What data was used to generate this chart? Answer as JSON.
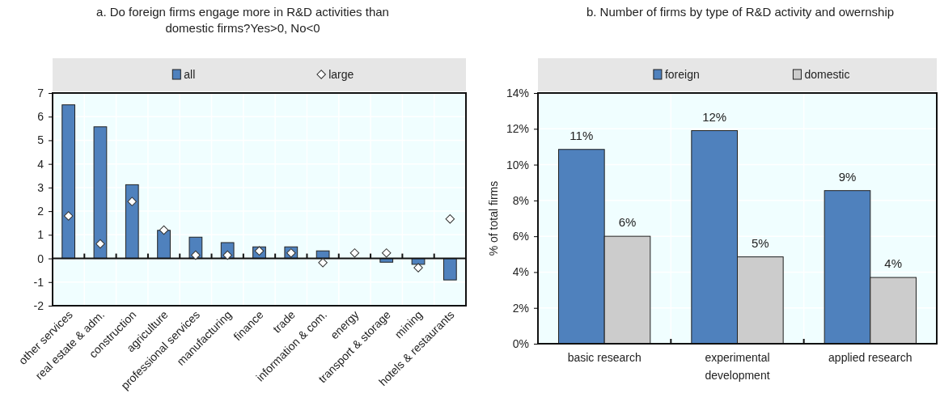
{
  "chart_data": [
    {
      "type": "bar",
      "title": "a. Do foreign firms engage more in R&D activities than domestic firms?Yes>0, No<0",
      "categories": [
        "other services",
        "real estate & adm.",
        "construction",
        "agriculture",
        "professional services",
        "manufacturing",
        "finance",
        "trade",
        "information & com.",
        "energy",
        "transport & storage",
        "mining",
        "hotels & restaurants"
      ],
      "series": [
        {
          "name": "all",
          "color": "#4f81bd",
          "values": [
            6.5,
            5.57,
            3.12,
            1.19,
            0.9,
            0.67,
            0.49,
            0.49,
            0.32,
            null,
            -0.16,
            -0.25,
            -0.91
          ]
        },
        {
          "name": "large",
          "type": "scatter",
          "marker": "diamond",
          "color": "#ffffff",
          "x": [
            "other services",
            "real estate & adm.",
            "construction",
            "agriculture",
            "professional services",
            "manufacturing",
            "finance",
            "trade",
            "information & com.",
            "energy",
            "transport & storage",
            "mining",
            "hotels & restaurants"
          ],
          "values": [
            1.8,
            0.62,
            2.41,
            1.2,
            0.14,
            0.14,
            0.32,
            0.23,
            -0.18,
            0.23,
            0.23,
            -0.39,
            1.67
          ]
        }
      ],
      "ylim": [
        -2,
        7
      ],
      "yticks": [
        -2,
        -1,
        0,
        1,
        2,
        3,
        4,
        5,
        6,
        7
      ],
      "grid": true,
      "legend": "top"
    },
    {
      "type": "bar",
      "title": "b. Number of firms by type of R&D activity and owernship",
      "ylabel": "% of total firms",
      "categories": [
        "basic research",
        "experimental development",
        "applied research"
      ],
      "series": [
        {
          "name": "foreign",
          "color": "#4f81bd",
          "values": [
            10.85,
            11.9,
            8.55
          ],
          "value_labels": [
            "11%",
            "12%",
            "9%"
          ]
        },
        {
          "name": "domestic",
          "color": "#cccccc",
          "values": [
            6.0,
            4.85,
            3.7
          ],
          "value_labels": [
            "6%",
            "5%",
            "4%"
          ]
        }
      ],
      "ylim": [
        0,
        14
      ],
      "yticks": [
        {
          "value": 0,
          "label": "0%"
        },
        {
          "value": 2,
          "label": "2%"
        },
        {
          "value": 4,
          "label": "4%"
        },
        {
          "value": 6,
          "label": "6%"
        },
        {
          "value": 8,
          "label": "8%"
        },
        {
          "value": 10,
          "label": "10%"
        },
        {
          "value": 12,
          "label": "12%"
        },
        {
          "value": 14,
          "label": "14%"
        }
      ],
      "grid": true,
      "legend": "top"
    }
  ]
}
